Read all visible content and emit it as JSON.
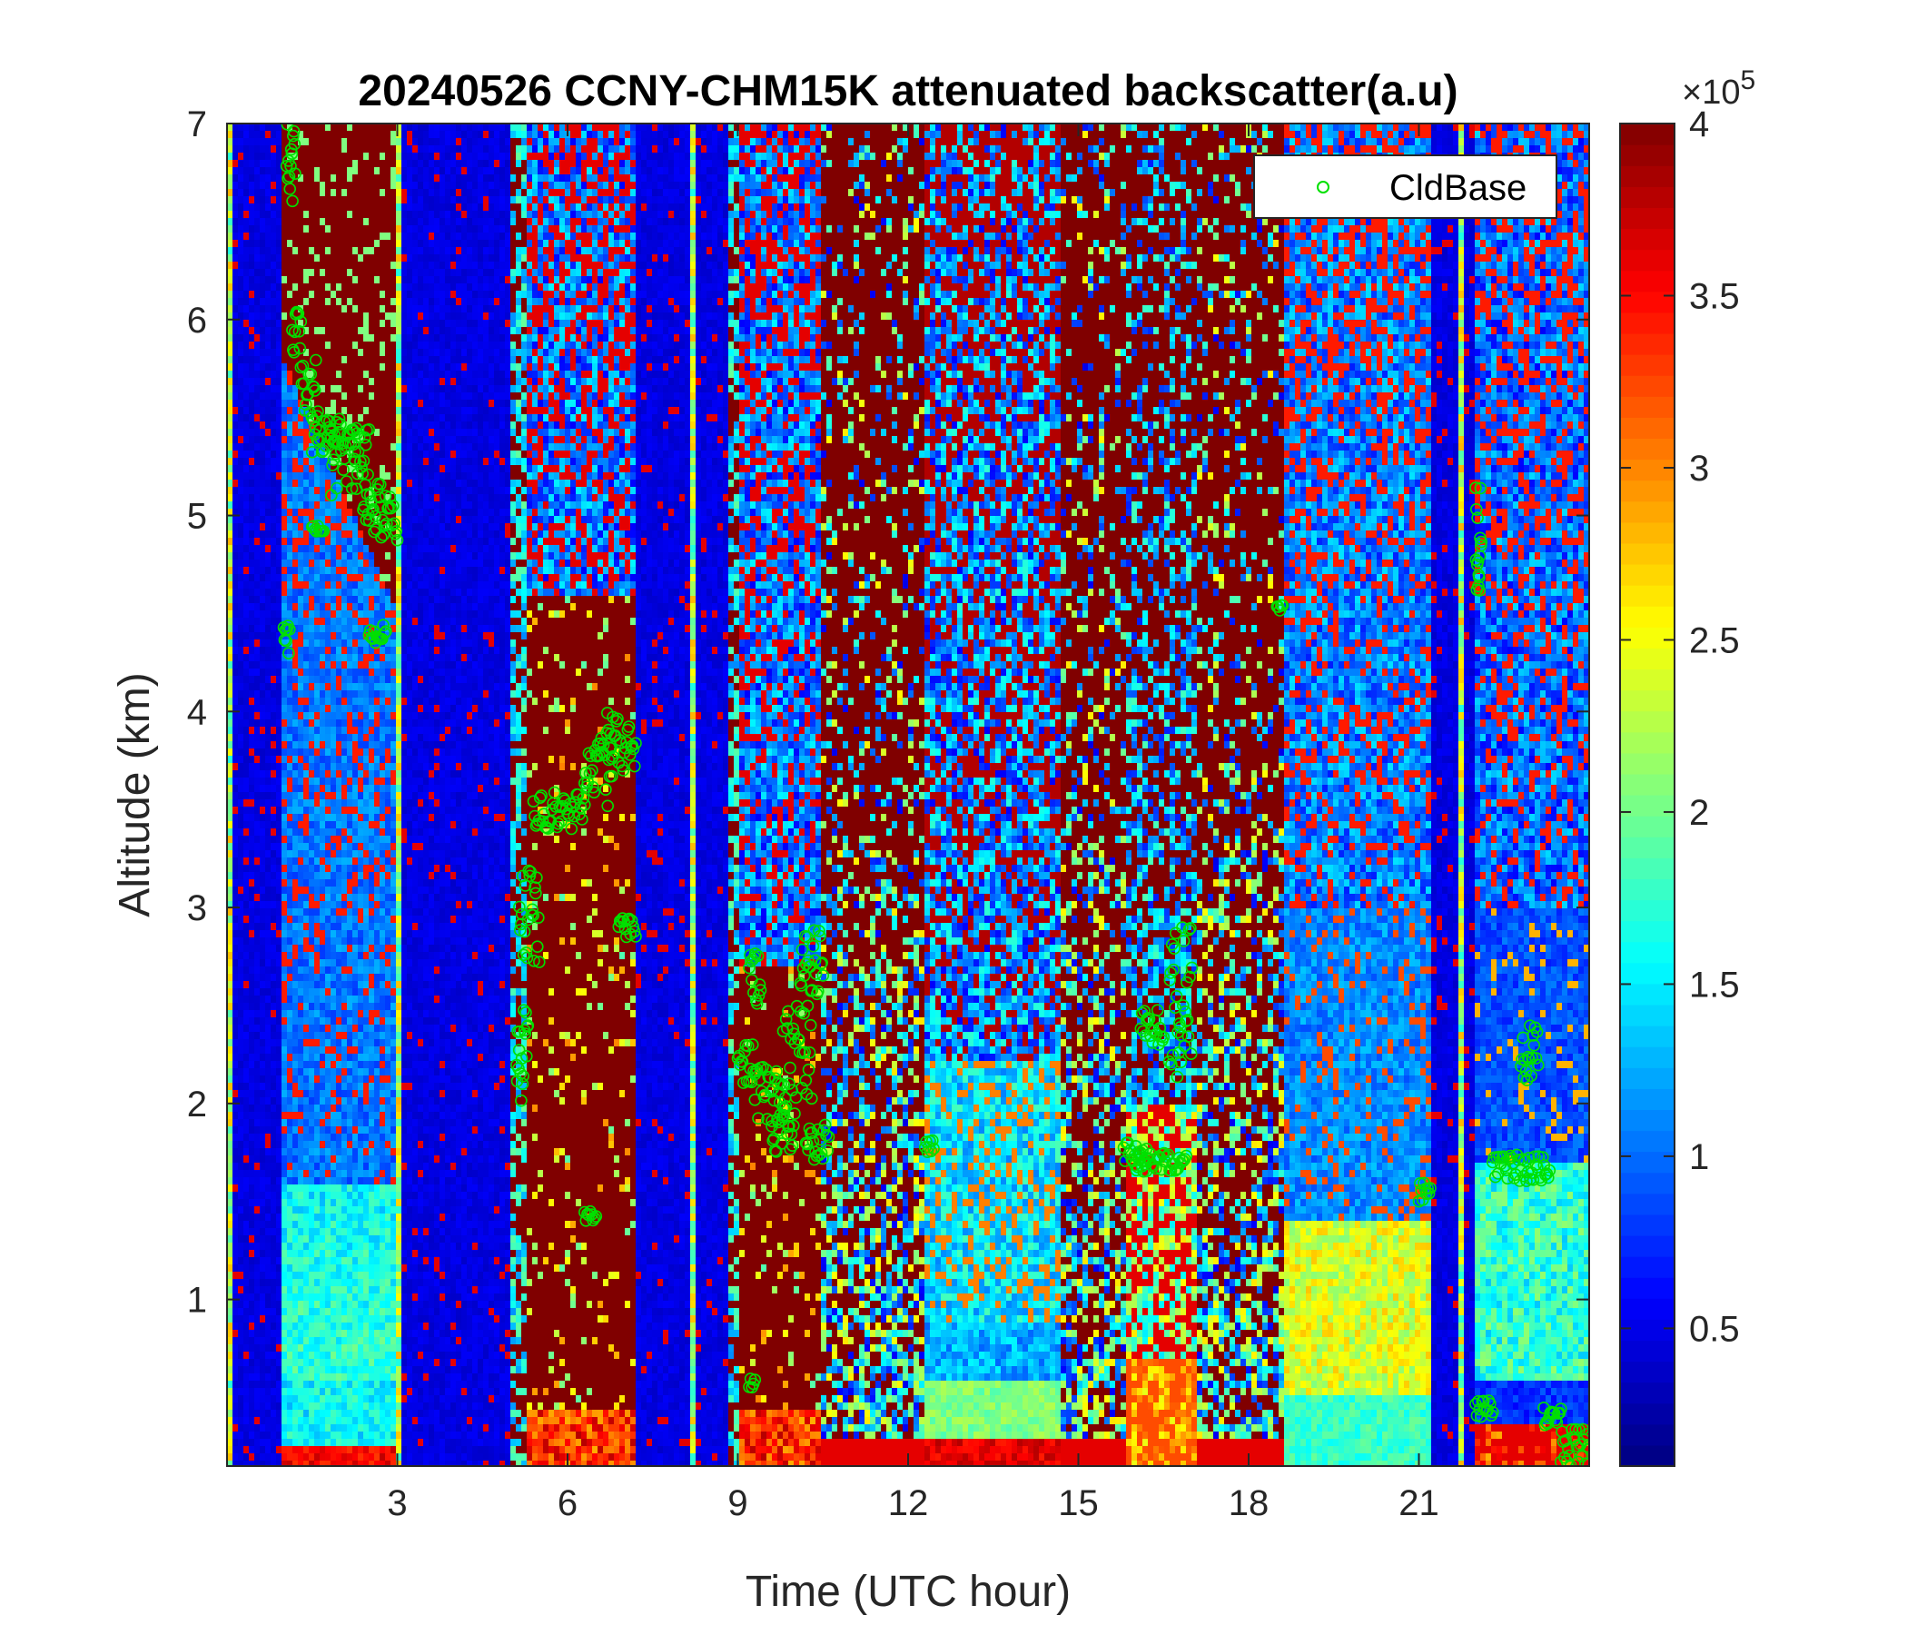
{
  "chart_data": {
    "type": "heatmap",
    "title": "20240526 CCNY-CHM15K attenuated backscatter(a.u)",
    "xlabel": "Time (UTC hour)",
    "ylabel": "Altitude (km)",
    "xlim": [
      0,
      24
    ],
    "ylim": [
      0.15,
      7
    ],
    "xticks": [
      3,
      6,
      9,
      12,
      15,
      18,
      21
    ],
    "xtick_labels": [
      "3",
      "6",
      "9",
      "12",
      "15",
      "18",
      "21"
    ],
    "yticks": [
      1,
      2,
      3,
      4,
      5,
      6,
      7
    ],
    "ytick_labels": [
      "1",
      "2",
      "3",
      "4",
      "5",
      "6",
      "7"
    ],
    "colorbar": {
      "colormap": "jet",
      "range": [
        0.1,
        4
      ],
      "ticks": [
        0.5,
        1,
        1.5,
        2,
        2.5,
        3,
        3.5,
        4
      ],
      "tick_labels": [
        "0.5",
        "1",
        "1.5",
        "2",
        "2.5",
        "3",
        "3.5",
        "4"
      ],
      "exponent_label": "×10",
      "exponent": "5"
    },
    "legend": {
      "placement": "top-right",
      "entries": [
        "CldBase"
      ]
    },
    "segments": [
      {
        "t0": 0.0,
        "t1": 0.45,
        "kind": "blue"
      },
      {
        "t0": 0.45,
        "t1": 1.0,
        "kind": "blue"
      },
      {
        "t0": 1.0,
        "t1": 3.0,
        "kind": "cloudy",
        "pbl": 0.7,
        "cloud_bottom": 4.5
      },
      {
        "t0": 3.0,
        "t1": 5.0,
        "kind": "blue"
      },
      {
        "t0": 5.0,
        "t1": 5.25,
        "kind": "noise"
      },
      {
        "t0": 5.25,
        "t1": 7.2,
        "kind": "rain",
        "cloud_top": 4.6
      },
      {
        "t0": 7.2,
        "t1": 8.8,
        "kind": "blue"
      },
      {
        "t0": 8.8,
        "t1": 9.0,
        "kind": "noise"
      },
      {
        "t0": 9.0,
        "t1": 10.5,
        "kind": "rain",
        "cloud_top": 2.7
      },
      {
        "t0": 10.5,
        "t1": 12.3,
        "kind": "noisy_day"
      },
      {
        "t0": 12.3,
        "t1": 14.7,
        "kind": "pbl",
        "pbl": 0.9
      },
      {
        "t0": 14.7,
        "t1": 15.8,
        "kind": "noisy_day"
      },
      {
        "t0": 15.8,
        "t1": 17.1,
        "kind": "pbl_red",
        "pbl": 0.9
      },
      {
        "t0": 17.1,
        "t1": 18.6,
        "kind": "noisy_day"
      },
      {
        "t0": 18.6,
        "t1": 21.2,
        "kind": "pbl_yellow",
        "pbl": 1.4
      },
      {
        "t0": 21.2,
        "t1": 22.0,
        "kind": "blue"
      },
      {
        "t0": 22.0,
        "t1": 24.0,
        "kind": "pbl_low",
        "pbl": 1.7
      }
    ],
    "series": [
      {
        "name": "CldBase",
        "marker": "open-circle",
        "color": "#00e000",
        "clusters": [
          {
            "t": [
              1.05,
              1.2
            ],
            "z": [
              6.6,
              7.0
            ]
          },
          {
            "t": [
              1.15,
              1.3
            ],
            "z": [
              5.8,
              6.05
            ]
          },
          {
            "t": [
              1.3,
              1.6
            ],
            "z": [
              5.5,
              5.8
            ]
          },
          {
            "t": [
              1.5,
              2.0
            ],
            "z": [
              5.3,
              5.5
            ]
          },
          {
            "t": [
              1.8,
              2.3
            ],
            "z": [
              5.1,
              5.45
            ]
          },
          {
            "t": [
              2.2,
              2.5
            ],
            "z": [
              5.2,
              5.45
            ]
          },
          {
            "t": [
              2.4,
              2.7
            ],
            "z": [
              4.9,
              5.2
            ]
          },
          {
            "t": [
              2.5,
              2.8
            ],
            "z": [
              4.35,
              4.45
            ]
          },
          {
            "t": [
              2.7,
              3.0
            ],
            "z": [
              4.85,
              5.1
            ]
          },
          {
            "t": [
              1.5,
              1.7
            ],
            "z": [
              4.9,
              4.95
            ]
          },
          {
            "t": [
              1.0,
              1.1
            ],
            "z": [
              4.25,
              4.45
            ]
          },
          {
            "t": [
              5.15,
              5.5
            ],
            "z": [
              2.7,
              3.2
            ]
          },
          {
            "t": [
              5.1,
              5.3
            ],
            "z": [
              2.0,
              2.5
            ]
          },
          {
            "t": [
              5.4,
              6.3
            ],
            "z": [
              3.4,
              3.6
            ]
          },
          {
            "t": [
              6.3,
              6.8
            ],
            "z": [
              3.5,
              3.9
            ]
          },
          {
            "t": [
              6.7,
              7.2
            ],
            "z": [
              3.7,
              4.0
            ]
          },
          {
            "t": [
              6.9,
              7.2
            ],
            "z": [
              2.85,
              2.95
            ]
          },
          {
            "t": [
              6.3,
              6.5
            ],
            "z": [
              1.4,
              1.45
            ]
          },
          {
            "t": [
              9.0,
              9.3
            ],
            "z": [
              2.1,
              2.3
            ]
          },
          {
            "t": [
              9.2,
              9.4
            ],
            "z": [
              2.5,
              2.8
            ]
          },
          {
            "t": [
              9.3,
              9.8
            ],
            "z": [
              1.9,
              2.2
            ]
          },
          {
            "t": [
              9.6,
              10.0
            ],
            "z": [
              1.7,
              2.0
            ]
          },
          {
            "t": [
              9.8,
              10.3
            ],
            "z": [
              2.0,
              2.5
            ]
          },
          {
            "t": [
              10.1,
              10.5
            ],
            "z": [
              2.5,
              2.9
            ]
          },
          {
            "t": [
              10.2,
              10.6
            ],
            "z": [
              1.7,
              1.9
            ]
          },
          {
            "t": [
              9.2,
              9.3
            ],
            "z": [
              0.55,
              0.6
            ]
          },
          {
            "t": [
              12.3,
              12.45
            ],
            "z": [
              1.75,
              1.85
            ]
          },
          {
            "t": [
              15.8,
              16.2
            ],
            "z": [
              1.7,
              1.8
            ]
          },
          {
            "t": [
              16.0,
              16.9
            ],
            "z": [
              1.65,
              1.75
            ]
          },
          {
            "t": [
              16.1,
              16.5
            ],
            "z": [
              2.3,
              2.5
            ]
          },
          {
            "t": [
              16.6,
              17.0
            ],
            "z": [
              2.1,
              2.9
            ]
          },
          {
            "t": [
              18.5,
              18.6
            ],
            "z": [
              4.5,
              4.55
            ]
          },
          {
            "t": [
              21.0,
              21.2
            ],
            "z": [
              1.5,
              1.6
            ]
          },
          {
            "t": [
              22.0,
              22.1
            ],
            "z": [
              4.6,
              5.2
            ]
          },
          {
            "t": [
              22.0,
              22.3
            ],
            "z": [
              0.4,
              0.5
            ]
          },
          {
            "t": [
              22.3,
              23.3
            ],
            "z": [
              1.6,
              1.75
            ]
          },
          {
            "t": [
              22.8,
              23.1
            ],
            "z": [
              2.1,
              2.4
            ]
          },
          {
            "t": [
              23.2,
              23.5
            ],
            "z": [
              0.35,
              0.45
            ]
          },
          {
            "t": [
              23.5,
              24.0
            ],
            "z": [
              0.15,
              0.35
            ]
          }
        ]
      }
    ]
  }
}
